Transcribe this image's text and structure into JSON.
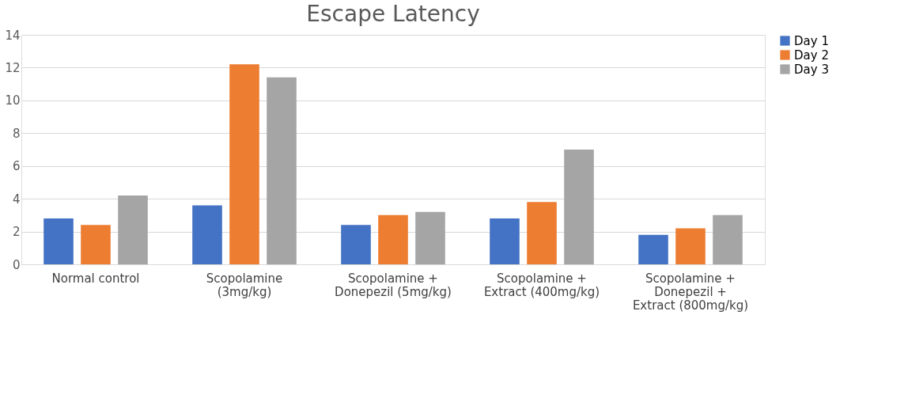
{
  "chart_data": {
    "type": "bar",
    "title": "Escape Latency",
    "categories": [
      "Normal control",
      "Scopolamine (3mg/kg)",
      "Scopolamine + Donepezil (5mg/kg)",
      "Scopolamine + Extract (400mg/kg)",
      "Scopolamine + Donepezil + Extract (800mg/kg)"
    ],
    "series": [
      {
        "name": "Day 1",
        "color": "#4472c4",
        "values": [
          2.8,
          3.6,
          2.4,
          2.8,
          1.8
        ]
      },
      {
        "name": "Day 2",
        "color": "#ed7d31",
        "values": [
          2.4,
          12.2,
          3.0,
          3.8,
          2.2
        ]
      },
      {
        "name": "Day 3",
        "color": "#a5a5a5",
        "values": [
          4.2,
          11.4,
          3.2,
          7.0,
          3.0
        ]
      }
    ],
    "ylim": [
      0,
      14
    ],
    "yticks": [
      0,
      2,
      4,
      6,
      8,
      10,
      12,
      14
    ],
    "grid": "y",
    "legend": "right"
  }
}
